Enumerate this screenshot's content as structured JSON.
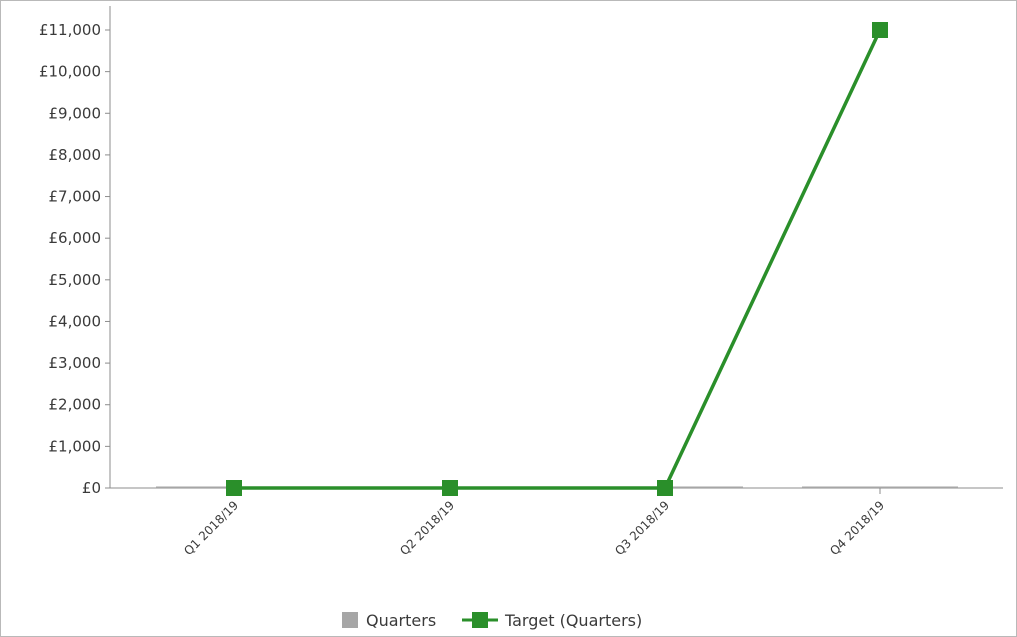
{
  "chart_data": {
    "type": "line",
    "categories": [
      "Q1 2018/19",
      "Q2 2018/19",
      "Q3 2018/19",
      "Q4 2018/19"
    ],
    "series": [
      {
        "name": "Quarters",
        "kind": "bar",
        "color": "#a6a6a6",
        "values": [
          0,
          0,
          0,
          0
        ]
      },
      {
        "name": "Target (Quarters)",
        "kind": "line",
        "color": "#2a8f2a",
        "values": [
          0,
          0,
          0,
          11000
        ]
      }
    ],
    "ylim": [
      0,
      11000
    ],
    "yticks": [
      0,
      1000,
      2000,
      3000,
      4000,
      5000,
      6000,
      7000,
      8000,
      9000,
      10000,
      11000
    ],
    "ytick_labels": [
      "£0",
      "£1,000",
      "£2,000",
      "£3,000",
      "£4,000",
      "£5,000",
      "£6,000",
      "£7,000",
      "£8,000",
      "£9,000",
      "£10,000",
      "£11,000"
    ],
    "grid": false,
    "legend": "bottom-center"
  }
}
